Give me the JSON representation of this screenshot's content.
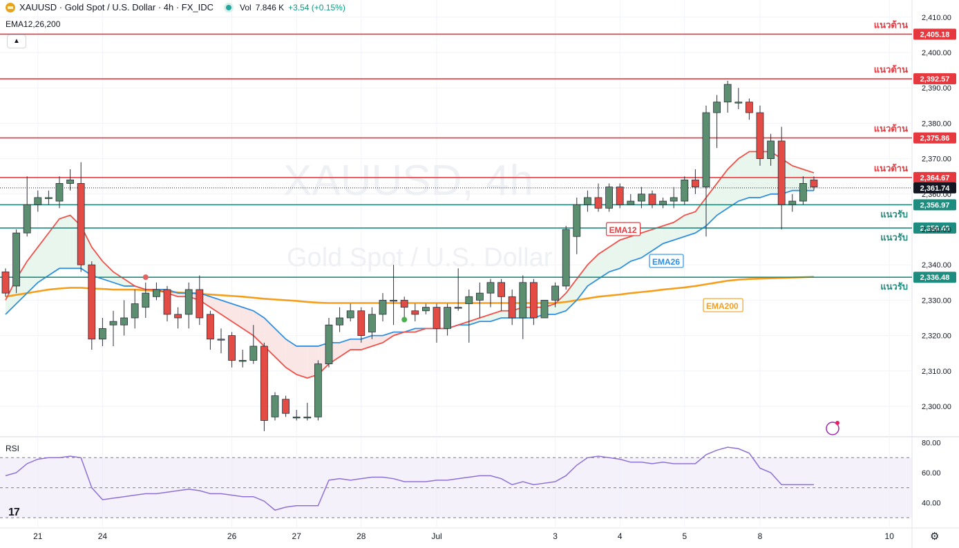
{
  "header": {
    "symbol": "XAUUSD · Gold Spot / U.S. Dollar · 4h · FX_IDC",
    "vol_label": "Vol",
    "vol_value": "7.846 K",
    "change": "+3.54 (+0.15%)",
    "indicator": "EMA12,26,200"
  },
  "watermark": {
    "line1": "XAUUSD, 4h",
    "line2": "Gold Spot / U.S. Dollar"
  },
  "rsi_label": "RSI",
  "logo_text": "17",
  "colors": {
    "up": "#5b8f70",
    "down": "#e34b45",
    "ema12": "#f0504a",
    "ema26": "#2e8fe0",
    "ema200": "#f59e1b",
    "resistance": "#e5393f",
    "support": "#1e8c7e",
    "rsi": "#8e6fd6"
  },
  "chart_data": {
    "type": "candlestick",
    "timeframe": "4h",
    "y_ticks": [
      2300,
      2310,
      2320,
      2330,
      2340,
      2350,
      2360,
      2370,
      2380,
      2390,
      2400,
      2410
    ],
    "y_tick_labels": [
      "2,300.00",
      "2,310.00",
      "2,320.00",
      "2,330.00",
      "2,340.00",
      "2,350.00",
      "2,360.00",
      "2,370.00",
      "2,380.00",
      "2,390.00",
      "2,400.00",
      "2,410.00"
    ],
    "x_labels": [
      {
        "label": "21",
        "bar": 3
      },
      {
        "label": "24",
        "bar": 9
      },
      {
        "label": "26",
        "bar": 21
      },
      {
        "label": "27",
        "bar": 27
      },
      {
        "label": "28",
        "bar": 33
      },
      {
        "label": "Jul",
        "bar": 40
      },
      {
        "label": "3",
        "bar": 51
      },
      {
        "label": "4",
        "bar": 57
      },
      {
        "label": "5",
        "bar": 63
      },
      {
        "label": "8",
        "bar": 70
      },
      {
        "label": "10",
        "bar": 82
      }
    ],
    "candles": [
      [
        2338,
        2332,
        2339,
        2331
      ],
      [
        2334,
        2349,
        2350,
        2332
      ],
      [
        2349,
        2357,
        2365,
        2348
      ],
      [
        2357,
        2359,
        2361,
        2355
      ],
      [
        2359,
        2359,
        2361,
        2357
      ],
      [
        2358,
        2363,
        2365,
        2356
      ],
      [
        2363,
        2364,
        2367,
        2361
      ],
      [
        2363,
        2340,
        2369,
        2338
      ],
      [
        2340,
        2319,
        2341,
        2316
      ],
      [
        2319,
        2322,
        2325,
        2317
      ],
      [
        2323,
        2324,
        2327,
        2317
      ],
      [
        2323,
        2325,
        2330,
        2320
      ],
      [
        2325,
        2329,
        2333,
        2322
      ],
      [
        2328,
        2332,
        2335,
        2325
      ],
      [
        2331,
        2333,
        2335,
        2330
      ],
      [
        2333,
        2326,
        2334,
        2324
      ],
      [
        2326,
        2325,
        2328,
        2322
      ],
      [
        2326,
        2333,
        2335,
        2322
      ],
      [
        2333,
        2325,
        2337,
        2323
      ],
      [
        2326,
        2319,
        2327,
        2316
      ],
      [
        2319,
        2319,
        2322,
        2315
      ],
      [
        2320,
        2313,
        2321,
        2311
      ],
      [
        2313,
        2313,
        2316,
        2311
      ],
      [
        2313,
        2317,
        2323,
        2312
      ],
      [
        2317,
        2296,
        2318,
        2293
      ],
      [
        2297,
        2303,
        2304,
        2296
      ],
      [
        2302,
        2298,
        2303,
        2297
      ],
      [
        2297,
        2297,
        2299,
        2296
      ],
      [
        2297,
        2297,
        2301,
        2296
      ],
      [
        2297,
        2312,
        2313,
        2296
      ],
      [
        2312,
        2323,
        2325,
        2311
      ],
      [
        2323,
        2325,
        2328,
        2321
      ],
      [
        2325,
        2327,
        2329,
        2324
      ],
      [
        2327,
        2320,
        2328,
        2318
      ],
      [
        2321,
        2326,
        2328,
        2319
      ],
      [
        2326,
        2330,
        2332,
        2324
      ],
      [
        2330,
        2330,
        2340,
        2323
      ],
      [
        2330,
        2328,
        2331,
        2325
      ],
      [
        2327,
        2326,
        2329,
        2324
      ],
      [
        2327,
        2328,
        2329,
        2326
      ],
      [
        2328,
        2322,
        2329,
        2318
      ],
      [
        2322,
        2328,
        2329,
        2320
      ],
      [
        2328,
        2328,
        2339,
        2327
      ],
      [
        2329,
        2331,
        2333,
        2318
      ],
      [
        2330,
        2332,
        2335,
        2325
      ],
      [
        2332,
        2335,
        2336,
        2328
      ],
      [
        2335,
        2331,
        2336,
        2327
      ],
      [
        2331,
        2325,
        2333,
        2323
      ],
      [
        2325,
        2335,
        2337,
        2319
      ],
      [
        2335,
        2325,
        2336,
        2323
      ],
      [
        2325,
        2330,
        2330,
        2325
      ],
      [
        2330,
        2334,
        2335,
        2328
      ],
      [
        2334,
        2350,
        2351,
        2333
      ],
      [
        2348,
        2357,
        2359,
        2343
      ],
      [
        2357,
        2359,
        2361,
        2355
      ],
      [
        2359,
        2356,
        2363,
        2355
      ],
      [
        2356,
        2362,
        2363,
        2355
      ],
      [
        2362,
        2357,
        2363,
        2356
      ],
      [
        2357,
        2358,
        2360,
        2357
      ],
      [
        2358,
        2360,
        2362,
        2356
      ],
      [
        2360,
        2357,
        2361,
        2356
      ],
      [
        2357,
        2358,
        2359,
        2356
      ],
      [
        2358,
        2359,
        2362,
        2356
      ],
      [
        2358,
        2364,
        2365,
        2357
      ],
      [
        2364,
        2362,
        2367,
        2360
      ],
      [
        2362,
        2383,
        2385,
        2348
      ],
      [
        2383,
        2386,
        2388,
        2373
      ],
      [
        2386,
        2391,
        2392,
        2383
      ],
      [
        2386,
        2386,
        2390,
        2384
      ],
      [
        2386,
        2383,
        2387,
        2381
      ],
      [
        2383,
        2370,
        2385,
        2368
      ],
      [
        2370,
        2375,
        2377,
        2368
      ],
      [
        2375,
        2357,
        2379,
        2350
      ],
      [
        2357,
        2358,
        2360,
        2355
      ],
      [
        2358,
        2363,
        2365,
        2357
      ],
      [
        2364,
        2362,
        2365,
        2361
      ]
    ],
    "ema12": [
      2330,
      2336,
      2341,
      2345,
      2349,
      2353,
      2354,
      2351,
      2345,
      2341,
      2338,
      2336,
      2334,
      2333,
      2333,
      2332,
      2331,
      2331,
      2330,
      2328,
      2326,
      2324,
      2322,
      2320,
      2317,
      2314,
      2311,
      2309,
      2308,
      2309,
      2312,
      2314,
      2316,
      2316,
      2317,
      2318,
      2320,
      2321,
      2321,
      2322,
      2322,
      2322,
      2323,
      2324,
      2325,
      2326,
      2327,
      2327,
      2328,
      2328,
      2328,
      2329,
      2332,
      2336,
      2340,
      2343,
      2345,
      2347,
      2348,
      2349,
      2350,
      2351,
      2352,
      2354,
      2355,
      2359,
      2363,
      2367,
      2370,
      2372,
      2372,
      2372,
      2370,
      2368,
      2367,
      2366
    ],
    "ema26": [
      2326,
      2329,
      2332,
      2335,
      2337,
      2339,
      2339,
      2339,
      2337,
      2336,
      2335,
      2334,
      2334,
      2333,
      2333,
      2333,
      2332,
      2332,
      2332,
      2331,
      2330,
      2329,
      2328,
      2327,
      2325,
      2322,
      2319,
      2317,
      2317,
      2317,
      2318,
      2318,
      2319,
      2319,
      2320,
      2320,
      2321,
      2321,
      2322,
      2322,
      2322,
      2322,
      2323,
      2323,
      2324,
      2324,
      2325,
      2325,
      2325,
      2325,
      2326,
      2326,
      2327,
      2330,
      2334,
      2336,
      2338,
      2339,
      2341,
      2342,
      2344,
      2346,
      2347,
      2348,
      2349,
      2351,
      2354,
      2356,
      2358,
      2359,
      2359,
      2360,
      2360,
      2361,
      2361,
      2361
    ],
    "ema200": [
      2331,
      2331.5,
      2332,
      2332.5,
      2333,
      2333.3,
      2333.5,
      2333.5,
      2333.3,
      2333.2,
      2333,
      2333,
      2333,
      2332.8,
      2332.6,
      2332.4,
      2332.2,
      2332,
      2331.8,
      2331.6,
      2331.4,
      2331.2,
      2331,
      2330.7,
      2330.4,
      2330.2,
      2330,
      2329.8,
      2329.5,
      2329.3,
      2329.2,
      2329.2,
      2329.2,
      2329.2,
      2329.2,
      2329.2,
      2329.2,
      2329.2,
      2329.2,
      2329.2,
      2329.2,
      2329.2,
      2329.2,
      2329.2,
      2329.2,
      2329.2,
      2329.2,
      2329.2,
      2329.2,
      2329.2,
      2329.2,
      2329.2,
      2329.5,
      2330,
      2330.5,
      2331,
      2331.3,
      2331.6,
      2332,
      2332.3,
      2332.6,
      2333,
      2333.3,
      2333.6,
      2334,
      2334.5,
      2335,
      2335.5,
      2335.8,
      2336,
      2336.1,
      2336.2,
      2336.3,
      2336.4,
      2336.5,
      2336.6
    ],
    "rsi": [
      58,
      60,
      66,
      69,
      70,
      70,
      71,
      70,
      50,
      42,
      43,
      44,
      45,
      46,
      46,
      47,
      48,
      49,
      48,
      46,
      46,
      45,
      44,
      44,
      41,
      35,
      37,
      38,
      38,
      38,
      55,
      56,
      55,
      56,
      57,
      57,
      56,
      54,
      54,
      54,
      55,
      55,
      56,
      57,
      58,
      58,
      56,
      52,
      54,
      52,
      53,
      54,
      58,
      65,
      70,
      71,
      70,
      69,
      67,
      67,
      66,
      67,
      66,
      66,
      66,
      72,
      75,
      77,
      76,
      73,
      63,
      60,
      52,
      52,
      52,
      52
    ],
    "rsi_ticks": [
      40,
      60,
      80
    ],
    "rsi_tick_labels": [
      "40.00",
      "60.00",
      "80.00"
    ],
    "rsi_bands": [
      30,
      50,
      70
    ],
    "levels": [
      {
        "type": "resistance",
        "label": "แนวต้าน",
        "value": 2405.18,
        "text": "2,405.18"
      },
      {
        "type": "resistance",
        "label": "แนวต้าน",
        "value": 2392.57,
        "text": "2,392.57"
      },
      {
        "type": "resistance",
        "label": "แนวต้าน",
        "value": 2375.86,
        "text": "2,375.86"
      },
      {
        "type": "resistance",
        "label": "แนวต้าน",
        "value": 2364.67,
        "text": "2,364.67"
      },
      {
        "type": "support",
        "label": "แนวรับ",
        "value": 2356.97,
        "text": "2,356.97"
      },
      {
        "type": "support",
        "label": "แนวรับ",
        "value": 2350.4,
        "text": "2,350.40"
      },
      {
        "type": "support",
        "label": "แนวรับ",
        "value": 2336.48,
        "text": "2,336.48"
      }
    ],
    "current_price": {
      "value": 2361.74,
      "text": "2,361.74"
    },
    "ema_labels": [
      {
        "text": "EMA12",
        "color": "#e5393f",
        "bar": 56,
        "value": 2350
      },
      {
        "text": "EMA26",
        "color": "#2e8fe0",
        "bar": 60,
        "value": 2341
      },
      {
        "text": "EMA200",
        "color": "#f59e1b",
        "bar": 65,
        "value": 2328.5
      }
    ]
  }
}
